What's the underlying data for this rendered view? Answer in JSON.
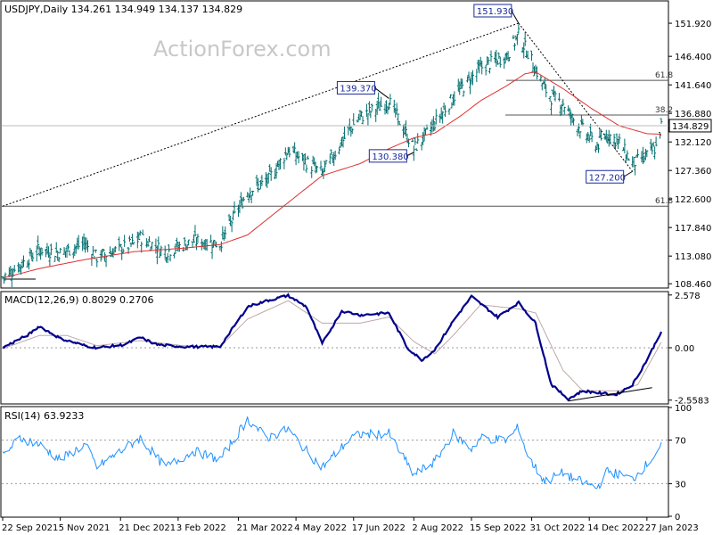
{
  "chart_data": [
    {
      "type": "ohlc",
      "panel": "price",
      "header": "USDJPY,Daily  134.261 134.949 134.137 134.829",
      "watermark": "ActionForex.com",
      "symbol": "USDJPY",
      "timeframe": "Daily",
      "ohlc_last": {
        "open": 134.261,
        "high": 134.949,
        "low": 134.137,
        "close": 134.829
      },
      "y_ticks": [
        "151.920",
        "146.400",
        "141.640",
        "136.880",
        "132.120",
        "127.360",
        "122.600",
        "117.840",
        "113.080",
        "108.460"
      ],
      "ylim": [
        107.9,
        155.5
      ],
      "current_price": 134.829,
      "current_price_label": "134.829",
      "callouts": [
        {
          "label": "151.930",
          "value": 151.93,
          "date": "2022-10-21"
        },
        {
          "label": "139.370",
          "value": 139.37,
          "date": "2022-07-14"
        },
        {
          "label": "130.380",
          "value": 130.38,
          "date": "2022-08-02"
        },
        {
          "label": "127.200",
          "value": 127.2,
          "date": "2023-01-16"
        }
      ],
      "fib_levels": [
        {
          "label": "61.8",
          "value": 142.4
        },
        {
          "label": "38.2",
          "value": 136.6
        },
        {
          "label": "61.8",
          "value": 121.4
        }
      ],
      "trendlines": [
        {
          "style": "dashed",
          "from": {
            "date": "2021-09-22",
            "value": 121.4
          },
          "to": {
            "date": "2022-10-21",
            "value": 151.93
          }
        },
        {
          "style": "dashed",
          "from": {
            "date": "2022-10-21",
            "value": 151.93
          },
          "to": {
            "date": "2023-01-16",
            "value": 127.2
          }
        }
      ],
      "moving_average_color": "#e03030",
      "bar_color": "#006e6e",
      "series": [
        {
          "name": "close",
          "anchors": [
            [
              "2021-09-22",
              109.5
            ],
            [
              "2021-10-05",
              111.5
            ],
            [
              "2021-10-20",
              114.2
            ],
            [
              "2021-11-05",
              113.6
            ],
            [
              "2021-11-24",
              115.2
            ],
            [
              "2021-12-03",
              112.8
            ],
            [
              "2021-12-31",
              115.1
            ],
            [
              "2022-01-05",
              116.2
            ],
            [
              "2022-01-24",
              113.8
            ],
            [
              "2022-02-15",
              115.6
            ],
            [
              "2022-03-07",
              115.2
            ],
            [
              "2022-03-28",
              123.8
            ],
            [
              "2022-04-12",
              125.5
            ],
            [
              "2022-04-28",
              130.8
            ],
            [
              "2022-05-24",
              126.9
            ],
            [
              "2022-06-15",
              134.5
            ],
            [
              "2022-06-22",
              136.2
            ],
            [
              "2022-07-14",
              138.9
            ],
            [
              "2022-08-02",
              131.0
            ],
            [
              "2022-08-12",
              133.5
            ],
            [
              "2022-09-01",
              139.5
            ],
            [
              "2022-09-22",
              144.5
            ],
            [
              "2022-10-12",
              146.5
            ],
            [
              "2022-10-21",
              150.0
            ],
            [
              "2022-10-28",
              147.0
            ],
            [
              "2022-11-10",
              141.0
            ],
            [
              "2022-11-15",
              139.5
            ],
            [
              "2022-11-24",
              138.6
            ],
            [
              "2022-12-01",
              136.0
            ],
            [
              "2022-12-20",
              131.5
            ],
            [
              "2022-12-28",
              133.5
            ],
            [
              "2023-01-06",
              132.0
            ],
            [
              "2023-01-16",
              128.5
            ],
            [
              "2023-01-27",
              129.8
            ],
            [
              "2023-02-03",
              131.2
            ],
            [
              "2023-02-07",
              134.8
            ]
          ]
        },
        {
          "name": "ma",
          "anchors": [
            [
              "2021-09-22",
              109.4
            ],
            [
              "2021-10-20",
              111.0
            ],
            [
              "2021-11-24",
              112.5
            ],
            [
              "2021-12-31",
              113.8
            ],
            [
              "2022-02-07",
              114.4
            ],
            [
              "2022-03-07",
              115.0
            ],
            [
              "2022-03-28",
              116.6
            ],
            [
              "2022-04-28",
              122.0
            ],
            [
              "2022-05-24",
              126.5
            ],
            [
              "2022-06-22",
              128.5
            ],
            [
              "2022-07-14",
              131.0
            ],
            [
              "2022-08-02",
              132.8
            ],
            [
              "2022-08-18",
              133.6
            ],
            [
              "2022-09-07",
              136.5
            ],
            [
              "2022-09-22",
              139.0
            ],
            [
              "2022-10-12",
              141.5
            ],
            [
              "2022-10-26",
              143.5
            ],
            [
              "2022-11-03",
              143.8
            ],
            [
              "2022-11-24",
              141.0
            ],
            [
              "2022-12-15",
              137.8
            ],
            [
              "2023-01-06",
              134.8
            ],
            [
              "2023-01-27",
              133.5
            ],
            [
              "2023-02-07",
              133.4
            ]
          ]
        }
      ]
    },
    {
      "type": "line",
      "panel": "macd",
      "header": "MACD(12,26,9) 0.8029 0.2706",
      "y_ticks": [
        "2.578",
        "0.00",
        "-2.5583"
      ],
      "ylim": [
        -2.7,
        2.7
      ],
      "main_color": "#00008b",
      "signal_color": "#c0a8a8",
      "trendline": {
        "from": {
          "date": "2022-11-28",
          "value": -2.6
        },
        "to": {
          "date": "2023-01-31",
          "value": -1.95
        }
      },
      "series": [
        {
          "name": "MACD",
          "last": 0.8029,
          "anchors": [
            [
              "2021-09-22",
              0.0
            ],
            [
              "2021-10-12",
              0.65
            ],
            [
              "2021-10-20",
              1.05
            ],
            [
              "2021-11-05",
              0.45
            ],
            [
              "2021-11-24",
              0.1
            ],
            [
              "2021-12-03",
              0.0
            ],
            [
              "2021-12-24",
              0.15
            ],
            [
              "2022-01-05",
              0.5
            ],
            [
              "2022-01-18",
              0.15
            ],
            [
              "2022-02-07",
              0.05
            ],
            [
              "2022-03-07",
              0.05
            ],
            [
              "2022-03-28",
              2.0
            ],
            [
              "2022-04-12",
              2.3
            ],
            [
              "2022-04-28",
              2.55
            ],
            [
              "2022-05-12",
              2.0
            ],
            [
              "2022-05-24",
              0.2
            ],
            [
              "2022-06-08",
              1.8
            ],
            [
              "2022-06-22",
              1.6
            ],
            [
              "2022-07-14",
              1.7
            ],
            [
              "2022-07-28",
              0.0
            ],
            [
              "2022-08-08",
              -0.6
            ],
            [
              "2022-08-18",
              -0.1
            ],
            [
              "2022-09-01",
              1.3
            ],
            [
              "2022-09-15",
              2.5
            ],
            [
              "2022-10-05",
              1.5
            ],
            [
              "2022-10-21",
              2.2
            ],
            [
              "2022-11-03",
              1.2
            ],
            [
              "2022-11-15",
              -1.8
            ],
            [
              "2022-11-28",
              -2.5
            ],
            [
              "2022-12-09",
              -2.1
            ],
            [
              "2022-12-20",
              -2.2
            ],
            [
              "2023-01-03",
              -2.3
            ],
            [
              "2023-01-16",
              -1.8
            ],
            [
              "2023-01-27",
              -0.6
            ],
            [
              "2023-02-07",
              0.8029
            ]
          ]
        },
        {
          "name": "Signal",
          "last": 0.2706,
          "anchors": [
            [
              "2021-09-22",
              -0.05
            ],
            [
              "2021-10-20",
              0.6
            ],
            [
              "2021-11-10",
              0.6
            ],
            [
              "2021-12-03",
              0.1
            ],
            [
              "2022-01-05",
              0.35
            ],
            [
              "2022-02-07",
              0.1
            ],
            [
              "2022-03-07",
              0.05
            ],
            [
              "2022-03-28",
              1.4
            ],
            [
              "2022-04-28",
              2.3
            ],
            [
              "2022-05-24",
              1.2
            ],
            [
              "2022-06-22",
              1.2
            ],
            [
              "2022-07-14",
              1.5
            ],
            [
              "2022-08-02",
              0.3
            ],
            [
              "2022-08-18",
              -0.3
            ],
            [
              "2022-09-01",
              0.6
            ],
            [
              "2022-09-22",
              2.1
            ],
            [
              "2022-10-21",
              1.9
            ],
            [
              "2022-11-03",
              1.7
            ],
            [
              "2022-11-24",
              -1.1
            ],
            [
              "2022-12-09",
              -2.1
            ],
            [
              "2023-01-06",
              -2.1
            ],
            [
              "2023-01-20",
              -1.8
            ],
            [
              "2023-02-07",
              0.2706
            ]
          ]
        }
      ]
    },
    {
      "type": "line",
      "panel": "rsi",
      "header": "RSI(14) 63.9233",
      "y_ticks": [
        "100",
        "70",
        "30",
        "0"
      ],
      "ylim": [
        0,
        100
      ],
      "levels": [
        70,
        30
      ],
      "line_color": "#1e90ff",
      "series": [
        {
          "name": "RSI(14)",
          "last": 63.9233,
          "anchors": [
            [
              "2021-09-22",
              55
            ],
            [
              "2021-10-05",
              72
            ],
            [
              "2021-10-20",
              66
            ],
            [
              "2021-11-05",
              52
            ],
            [
              "2021-11-24",
              66
            ],
            [
              "2021-12-03",
              45
            ],
            [
              "2021-12-31",
              68
            ],
            [
              "2022-01-05",
              72
            ],
            [
              "2022-01-24",
              45
            ],
            [
              "2022-02-15",
              60
            ],
            [
              "2022-03-07",
              52
            ],
            [
              "2022-03-28",
              89
            ],
            [
              "2022-04-12",
              72
            ],
            [
              "2022-04-28",
              80
            ],
            [
              "2022-05-12",
              60
            ],
            [
              "2022-05-24",
              45
            ],
            [
              "2022-06-15",
              72
            ],
            [
              "2022-06-22",
              75
            ],
            [
              "2022-07-14",
              76
            ],
            [
              "2022-08-02",
              38
            ],
            [
              "2022-08-18",
              50
            ],
            [
              "2022-09-01",
              76
            ],
            [
              "2022-09-15",
              62
            ],
            [
              "2022-09-22",
              72
            ],
            [
              "2022-10-12",
              70
            ],
            [
              "2022-10-21",
              82
            ],
            [
              "2022-10-28",
              55
            ],
            [
              "2022-11-10",
              32
            ],
            [
              "2022-11-24",
              40
            ],
            [
              "2022-12-01",
              35
            ],
            [
              "2022-12-20",
              26
            ],
            [
              "2022-12-28",
              42
            ],
            [
              "2023-01-16",
              34
            ],
            [
              "2023-01-27",
              48
            ],
            [
              "2023-02-03",
              58
            ],
            [
              "2023-02-07",
              63.9
            ]
          ]
        }
      ]
    }
  ],
  "x_axis": {
    "start": "2021-09-22",
    "end": "2023-02-07",
    "labels": [
      {
        "text": "22 Sep 2021",
        "date": "2021-09-22"
      },
      {
        "text": "5 Nov 2021",
        "date": "2021-11-05"
      },
      {
        "text": "21 Dec 2021",
        "date": "2021-12-21"
      },
      {
        "text": "3 Feb 2022",
        "date": "2022-02-03"
      },
      {
        "text": "21 Mar 2022",
        "date": "2022-03-21"
      },
      {
        "text": "4 May 2022",
        "date": "2022-05-04"
      },
      {
        "text": "17 Jun 2022",
        "date": "2022-06-17"
      },
      {
        "text": "2 Aug 2022",
        "date": "2022-08-02"
      },
      {
        "text": "15 Sep 2022",
        "date": "2022-09-15"
      },
      {
        "text": "31 Oct 2022",
        "date": "2022-10-31"
      },
      {
        "text": "14 Dec 2022",
        "date": "2022-12-14"
      },
      {
        "text": "27 Jan 2023",
        "date": "2023-01-27"
      }
    ]
  },
  "colors": {
    "callout_text": "#1a2a9a",
    "grid_line": "#7f7f7f",
    "fib_line": "#555555",
    "axis_text": "#000000",
    "watermark": "#c8c8c8"
  }
}
